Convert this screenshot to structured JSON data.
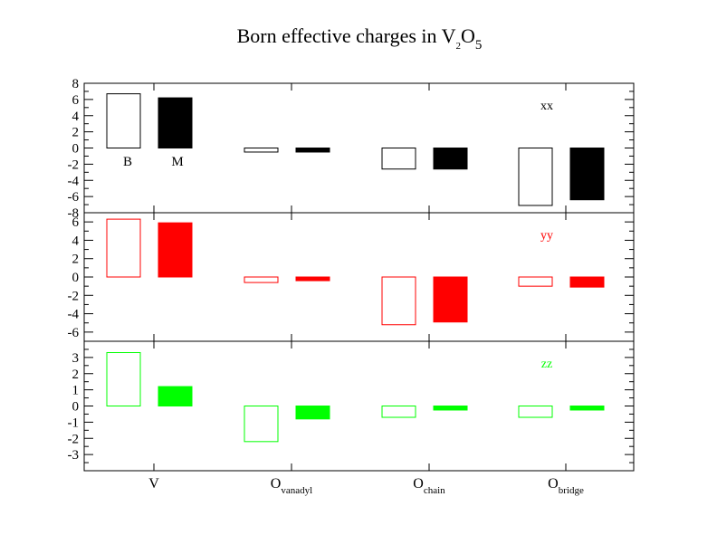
{
  "title": {
    "main": "Born effective charges  in V",
    "sub1": "2",
    "mid": "O",
    "sub2": "5"
  },
  "chart_data": [
    {
      "type": "bar",
      "component": "xx",
      "color": "#000000",
      "categories": [
        "V",
        "O_vanadyl",
        "O_chain",
        "O_bridge"
      ],
      "series": [
        {
          "name": "B",
          "style": "hollow",
          "values": [
            6.7,
            -0.5,
            -2.6,
            -7.1
          ]
        },
        {
          "name": "M",
          "style": "filled",
          "values": [
            6.2,
            -0.5,
            -2.6,
            -6.4
          ]
        }
      ],
      "ylim": [
        -8,
        8
      ],
      "yticks": [
        "8",
        "6",
        "4",
        "2",
        "0",
        "-2",
        "-4",
        "-6",
        "-8"
      ],
      "ytick_values": [
        8,
        6,
        4,
        2,
        0,
        -2,
        -4,
        -6,
        -8
      ]
    },
    {
      "type": "bar",
      "component": "yy",
      "color": "#ff0000",
      "categories": [
        "V",
        "O_vanadyl",
        "O_chain",
        "O_bridge"
      ],
      "series": [
        {
          "name": "B",
          "style": "hollow",
          "values": [
            6.3,
            -0.6,
            -5.2,
            -1.0
          ]
        },
        {
          "name": "M",
          "style": "filled",
          "values": [
            5.9,
            -0.4,
            -4.9,
            -1.1
          ]
        }
      ],
      "ylim": [
        -7,
        7
      ],
      "yticks": [
        "6",
        "4",
        "2",
        "0",
        "-2",
        "-4",
        "-6"
      ],
      "ytick_values": [
        6,
        4,
        2,
        0,
        -2,
        -4,
        -6
      ]
    },
    {
      "type": "bar",
      "component": "zz",
      "color": "#00ff00",
      "categories": [
        "V",
        "O_vanadyl",
        "O_chain",
        "O_bridge"
      ],
      "series": [
        {
          "name": "B",
          "style": "hollow",
          "values": [
            3.3,
            -2.2,
            -0.7,
            -0.7
          ]
        },
        {
          "name": "M",
          "style": "filled",
          "values": [
            1.2,
            -0.8,
            -0.25,
            -0.25
          ]
        }
      ],
      "ylim": [
        -4,
        4
      ],
      "yticks": [
        "3",
        "2",
        "1",
        "0",
        "-1",
        "-2",
        "-3"
      ],
      "ytick_values": [
        3,
        2,
        1,
        0,
        -1,
        -2,
        -3
      ]
    }
  ],
  "annotations": {
    "b_label": "B",
    "m_label": "M"
  },
  "x_labels": [
    {
      "main": "V",
      "sub": ""
    },
    {
      "main": "O",
      "sub": "vanadyl"
    },
    {
      "main": "O",
      "sub": "chain"
    },
    {
      "main": "O",
      "sub": "bridge"
    }
  ]
}
